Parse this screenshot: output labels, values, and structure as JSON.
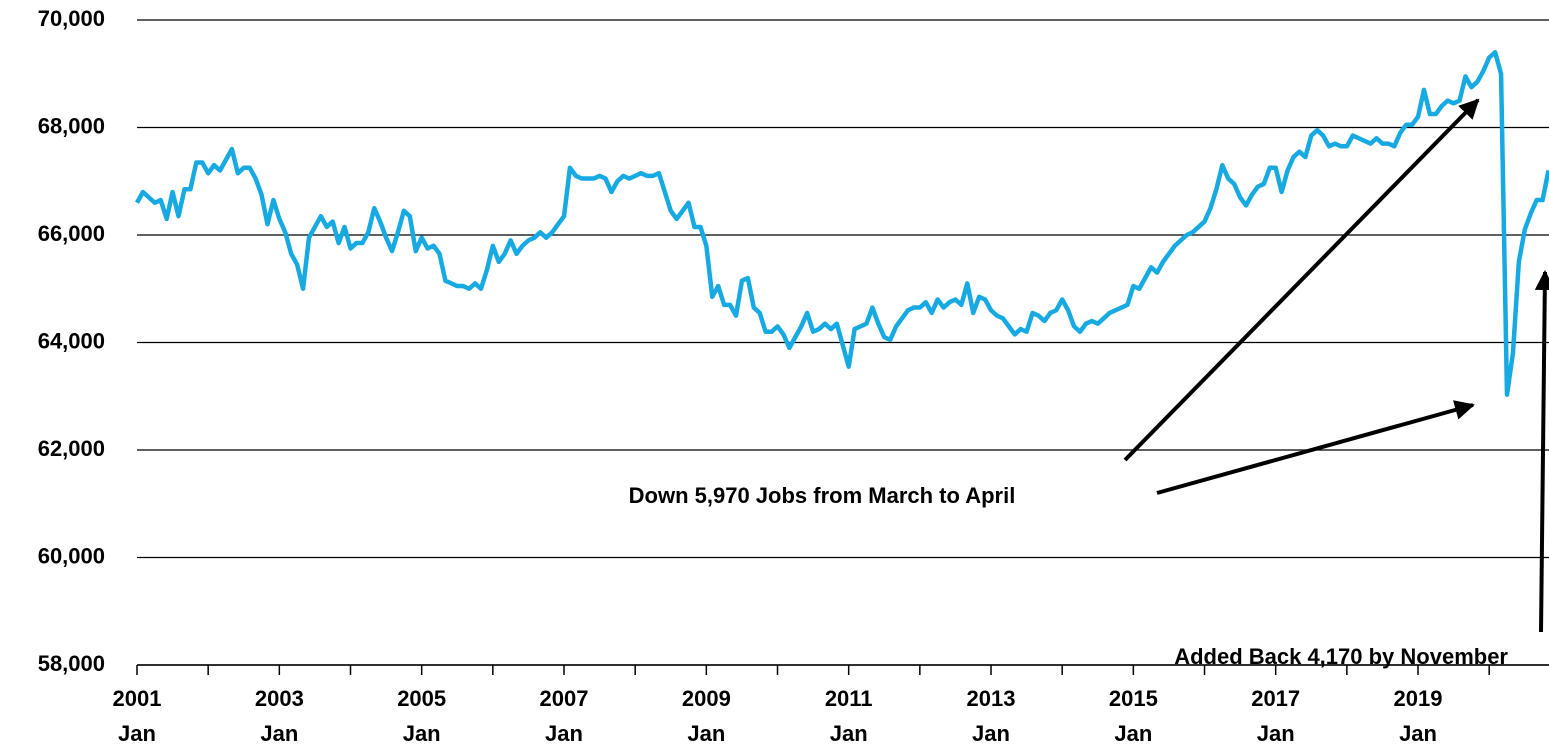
{
  "chart_data": {
    "type": "line",
    "categories": [
      "2001 Jan",
      null,
      null,
      null,
      null,
      null,
      null,
      null,
      null,
      null,
      null,
      null,
      null,
      null,
      null,
      null,
      null,
      null,
      null,
      null,
      null,
      null,
      null,
      null,
      "2003 Jan",
      null,
      null,
      null,
      null,
      null,
      null,
      null,
      null,
      null,
      null,
      null,
      null,
      null,
      null,
      null,
      null,
      null,
      null,
      null,
      null,
      null,
      null,
      null,
      "2005 Jan",
      null,
      null,
      null,
      null,
      null,
      null,
      null,
      null,
      null,
      null,
      null,
      null,
      null,
      null,
      null,
      null,
      null,
      null,
      null,
      null,
      null,
      null,
      null,
      "2007 Jan",
      null,
      null,
      null,
      null,
      null,
      null,
      null,
      null,
      null,
      null,
      null,
      null,
      null,
      null,
      null,
      null,
      null,
      null,
      null,
      null,
      null,
      null,
      null,
      "2009 Jan",
      null,
      null,
      null,
      null,
      null,
      null,
      null,
      null,
      null,
      null,
      null,
      null,
      null,
      null,
      null,
      null,
      null,
      null,
      null,
      null,
      null,
      null,
      null,
      "2011 Jan",
      null,
      null,
      null,
      null,
      null,
      null,
      null,
      null,
      null,
      null,
      null,
      null,
      null,
      null,
      null,
      null,
      null,
      null,
      null,
      null,
      null,
      null,
      null,
      "2013 Jan",
      null,
      null,
      null,
      null,
      null,
      null,
      null,
      null,
      null,
      null,
      null,
      null,
      null,
      null,
      null,
      null,
      null,
      null,
      null,
      null,
      null,
      null,
      null,
      "2015 Jan",
      null,
      null,
      null,
      null,
      null,
      null,
      null,
      null,
      null,
      null,
      null,
      null,
      null,
      null,
      null,
      null,
      null,
      null,
      null,
      null,
      null,
      null,
      null,
      "2017 Jan",
      null,
      null,
      null,
      null,
      null,
      null,
      null,
      null,
      null,
      null,
      null,
      null,
      null,
      null,
      null,
      null,
      null,
      null,
      null,
      null,
      null,
      null,
      null,
      "2019 Jan",
      null,
      null,
      null,
      null,
      null,
      null,
      null,
      null,
      null,
      null,
      null,
      null,
      null,
      null,
      null,
      null,
      null,
      null,
      null,
      null,
      null,
      null
    ],
    "values": [
      66600,
      66800,
      66700,
      66600,
      66650,
      66300,
      66800,
      66350,
      66850,
      66850,
      67350,
      67350,
      67150,
      67300,
      67200,
      67400,
      67600,
      67150,
      67250,
      67250,
      67050,
      66750,
      66200,
      66650,
      66300,
      66050,
      65650,
      65450,
      65000,
      65950,
      66150,
      66350,
      66150,
      66250,
      65850,
      66150,
      65750,
      65850,
      65850,
      66050,
      66500,
      66250,
      65950,
      65700,
      66050,
      66450,
      66350,
      65700,
      65950,
      65750,
      65800,
      65650,
      65150,
      65100,
      65050,
      65050,
      65000,
      65100,
      65000,
      65350,
      65800,
      65500,
      65650,
      65900,
      65650,
      65800,
      65900,
      65950,
      66050,
      65950,
      66050,
      66200,
      66350,
      67250,
      67100,
      67050,
      67050,
      67050,
      67100,
      67050,
      66800,
      67000,
      67100,
      67050,
      67100,
      67150,
      67100,
      67100,
      67150,
      66800,
      66450,
      66300,
      66450,
      66600,
      66150,
      66150,
      65800,
      64850,
      65050,
      64700,
      64700,
      64500,
      65150,
      65200,
      64650,
      64550,
      64200,
      64200,
      64300,
      64150,
      63900,
      64100,
      64300,
      64550,
      64200,
      64250,
      64350,
      64250,
      64350,
      63950,
      63550,
      64250,
      64300,
      64350,
      64650,
      64350,
      64100,
      64050,
      64300,
      64450,
      64600,
      64650,
      64650,
      64750,
      64550,
      64800,
      64650,
      64750,
      64800,
      64700,
      65100,
      64550,
      64850,
      64800,
      64600,
      64500,
      64450,
      64300,
      64150,
      64250,
      64200,
      64550,
      64500,
      64400,
      64550,
      64600,
      64800,
      64600,
      64300,
      64200,
      64350,
      64400,
      64350,
      64450,
      64550,
      64600,
      64650,
      64700,
      65050,
      65000,
      65200,
      65400,
      65300,
      65500,
      65650,
      65800,
      65900,
      66000,
      66050,
      66150,
      66250,
      66500,
      66850,
      67300,
      67050,
      66950,
      66700,
      66550,
      66750,
      66900,
      66950,
      67250,
      67250,
      66800,
      67200,
      67450,
      67550,
      67450,
      67850,
      67950,
      67850,
      67650,
      67700,
      67650,
      67650,
      67850,
      67800,
      67750,
      67700,
      67800,
      67700,
      67700,
      67650,
      67900,
      68050,
      68050,
      68200,
      68700,
      68250,
      68250,
      68400,
      68500,
      68450,
      68500,
      68950,
      68750,
      68850,
      69050,
      69300,
      69400,
      69000,
      63030,
      63800,
      65500,
      66100,
      66400,
      66650,
      66650,
      67200
    ],
    "color": "#17a9e1",
    "ylim": [
      58000,
      70000
    ],
    "yticks": [
      {
        "value": 58000,
        "label": "58,000"
      },
      {
        "value": 60000,
        "label": "60,000"
      },
      {
        "value": 62000,
        "label": "62,000"
      },
      {
        "value": 64000,
        "label": "64,000"
      },
      {
        "value": 66000,
        "label": "66,000"
      },
      {
        "value": 68000,
        "label": "68,000"
      },
      {
        "value": 70000,
        "label": "70,000"
      }
    ],
    "grid": true,
    "annotations": [
      "Down 5,970 Jobs from March to April",
      "Added Back 4,170 by November"
    ]
  }
}
